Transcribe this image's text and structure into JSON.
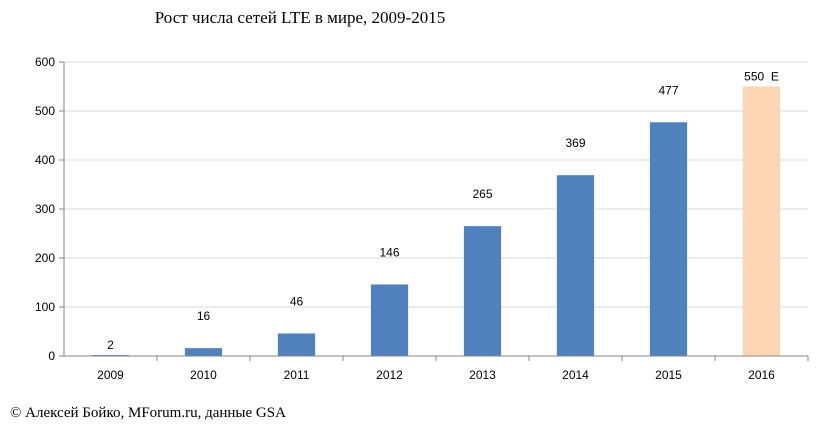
{
  "chart_data": {
    "type": "bar",
    "title": "Рост числа сетей LTE в мире, 2009-2015",
    "categories": [
      "2009",
      "2010",
      "2011",
      "2012",
      "2013",
      "2014",
      "2015",
      "2016"
    ],
    "values": [
      2,
      16,
      46,
      146,
      265,
      369,
      477,
      550
    ],
    "data_labels": [
      "2",
      "16",
      "46",
      "146",
      "265",
      "369",
      "477",
      "550  E"
    ],
    "estimated": [
      false,
      false,
      false,
      false,
      false,
      false,
      false,
      true
    ],
    "ylim": [
      0,
      600
    ],
    "yticks": [
      0,
      100,
      200,
      300,
      400,
      500,
      600
    ],
    "xlabel": "",
    "ylabel": "",
    "grid": true,
    "colors": {
      "actual": "#4f81bd",
      "estimate": "#fcd5b5",
      "grid": "#d9d9d9",
      "axis": "#868686"
    }
  },
  "credit": "© Алексей Бойко, MForum.ru, данные GSA"
}
